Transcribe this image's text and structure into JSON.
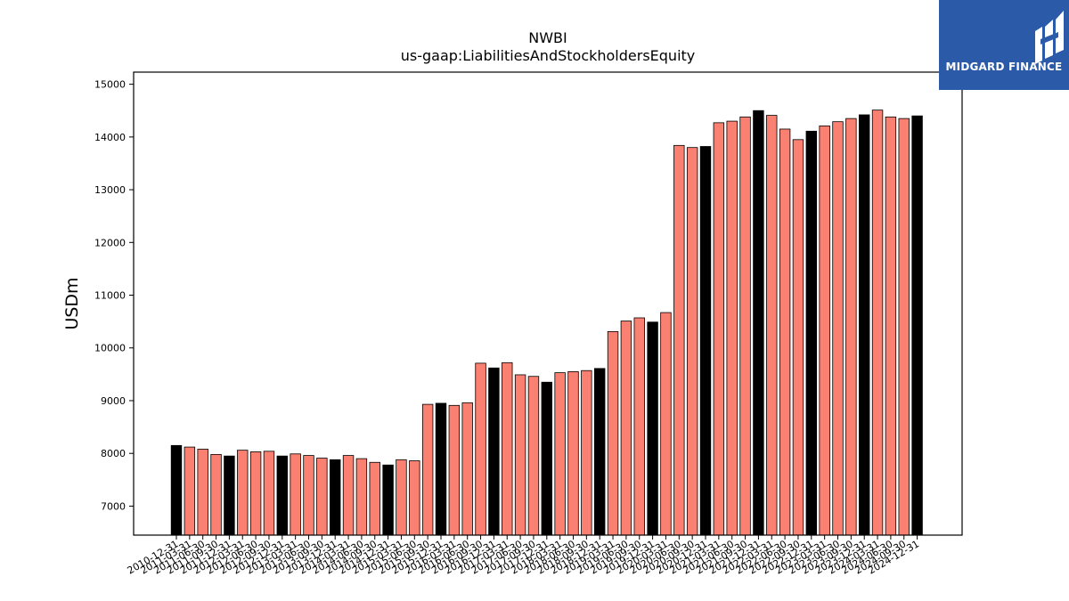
{
  "chart_data": {
    "type": "bar",
    "title": "NWBI",
    "subtitle": "us-gaap:LiabilitiesAndStockholdersEquity",
    "xlabel": "",
    "ylabel": "USDm",
    "ylim": [
      6450,
      15230
    ],
    "yticks": [
      7000,
      8000,
      9000,
      10000,
      11000,
      12000,
      13000,
      14000,
      15000
    ],
    "grid": false,
    "colors": {
      "quarterly": "#fa8072",
      "annual": "#000000",
      "edge": "#000000"
    },
    "categories": [
      "2010-12-31",
      "2011-03-31",
      "2011-06-30",
      "2011-09-30",
      "2011-12-31",
      "2012-03-31",
      "2012-06-30",
      "2012-09-30",
      "2012-12-31",
      "2013-03-31",
      "2013-06-30",
      "2013-09-30",
      "2013-12-31",
      "2014-03-31",
      "2014-06-30",
      "2014-09-30",
      "2014-12-31",
      "2015-03-31",
      "2015-06-30",
      "2015-09-30",
      "2015-12-31",
      "2016-03-31",
      "2016-06-30",
      "2016-09-30",
      "2016-12-31",
      "2017-03-31",
      "2017-06-30",
      "2017-09-30",
      "2017-12-31",
      "2018-03-31",
      "2018-06-30",
      "2018-09-30",
      "2018-12-31",
      "2019-03-31",
      "2019-06-30",
      "2019-09-30",
      "2019-12-31",
      "2020-03-31",
      "2020-06-30",
      "2020-09-30",
      "2020-12-31",
      "2021-03-31",
      "2021-06-30",
      "2021-09-30",
      "2021-12-31",
      "2022-03-31",
      "2022-06-30",
      "2022-09-30",
      "2022-12-31",
      "2023-03-31",
      "2023-06-30",
      "2023-09-30",
      "2023-12-31",
      "2024-03-31",
      "2024-06-30",
      "2024-09-30",
      "2024-12-31"
    ],
    "values": [
      8150,
      8120,
      8080,
      7980,
      7950,
      8060,
      8030,
      8040,
      7950,
      7990,
      7960,
      7910,
      7880,
      7960,
      7900,
      7830,
      7780,
      7880,
      7860,
      8930,
      8950,
      8910,
      8960,
      9710,
      9620,
      9720,
      9490,
      9460,
      9350,
      9530,
      9550,
      9570,
      9610,
      10310,
      10510,
      10570,
      10490,
      10670,
      13840,
      13800,
      13820,
      14270,
      14300,
      14380,
      14500,
      14410,
      14150,
      13950,
      14110,
      14210,
      14290,
      14350,
      14420,
      14510,
      14380,
      14350,
      14400
    ],
    "annual": [
      true,
      false,
      false,
      false,
      true,
      false,
      false,
      false,
      true,
      false,
      false,
      false,
      true,
      false,
      false,
      false,
      true,
      false,
      false,
      false,
      true,
      false,
      false,
      false,
      true,
      false,
      false,
      false,
      true,
      false,
      false,
      false,
      true,
      false,
      false,
      false,
      true,
      false,
      false,
      false,
      true,
      false,
      false,
      false,
      true,
      false,
      false,
      false,
      true,
      false,
      false,
      false,
      true,
      false,
      false,
      false,
      true
    ]
  },
  "logo": {
    "text": "MIDGARD FINANCE"
  }
}
